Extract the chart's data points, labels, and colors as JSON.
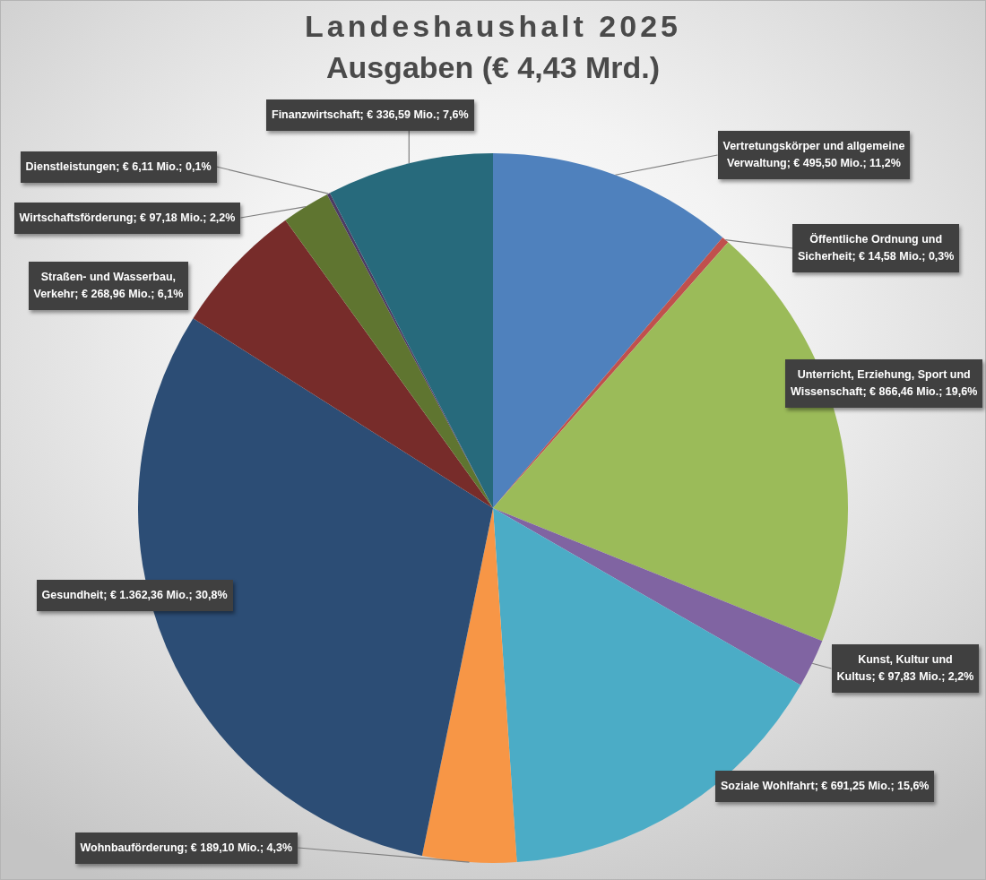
{
  "chart_data": {
    "type": "pie",
    "title": "Landeshaushalt 2025",
    "subtitle": "Ausgaben (€ 4,43 Mrd.)",
    "categories": [
      "Vertretungskörper und allgemeine Verwaltung",
      "Öffentliche Ordnung und Sicherheit",
      "Unterricht, Erziehung, Sport und Wissenschaft",
      "Kunst, Kultur und Kultus",
      "Soziale Wohlfahrt",
      "Wohnbauförderung",
      "Gesundheit",
      "Straßen- und Wasserbau, Verkehr",
      "Wirtschaftsförderung",
      "Dienstleistungen",
      "Finanzwirtschaft"
    ],
    "values": [
      495.5,
      14.58,
      866.46,
      97.83,
      691.25,
      189.1,
      1362.36,
      268.96,
      97.18,
      6.11,
      336.59
    ],
    "colors": [
      "#4f81bd",
      "#c0504d",
      "#9bbb59",
      "#8064a2",
      "#4bacc6",
      "#f79646",
      "#2c4d75",
      "#772c2a",
      "#5f7530",
      "#4d3b62",
      "#276a7c"
    ],
    "value_labels": [
      "€ 495,50 Mio.; 11,2%",
      "€ 14,58 Mio.; 0,3%",
      "€ 866,46 Mio.; 19,6%",
      "€ 97,83 Mio.; 2,2%",
      "€ 691,25 Mio.; 15,6%",
      "€ 189,10 Mio.; 4,3%",
      "€ 1.362,36 Mio.; 30,8%",
      "€ 268,96 Mio.; 6,1%",
      "€ 97,18 Mio.; 2,2%",
      "€ 6,11 Mio.; 0,1%",
      "€ 336,59 Mio.; 7,6%"
    ]
  }
}
